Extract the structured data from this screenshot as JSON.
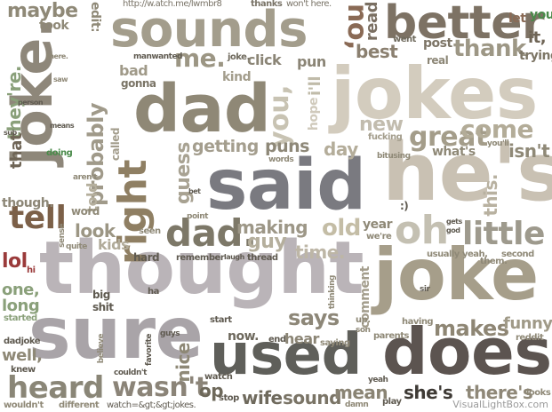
{
  "words": {
    "thought": "thought",
    "sure": "sure",
    "said": "said",
    "hes": "he's",
    "joke_big": "joke",
    "jokes": "jokes",
    "dad": "dad",
    "sounds": "sounds",
    "better": "better",
    "used": "used",
    "does": "does",
    "joke_v": "joke.",
    "right": "right",
    "dad_dot": "dad.",
    "oh": "oh",
    "little": "little",
    "heard": "heard",
    "wasnt": "wasn't",
    "great": "great",
    "come": "come",
    "tell": "tell",
    "me_dot": "me.",
    "you": "you,",
    "no": "no,",
    "thank": "thank",
    "maybe": "maybe",
    "theyre": "they're.",
    "probably": "probably",
    "guess": "guess",
    "getting": "getting",
    "puns": "puns",
    "day": "day",
    "new": "new",
    "best": "best",
    "post": "post",
    "trying": "trying",
    "it": "it,",
    "read": "read",
    "old": "old",
    "making": "making",
    "guy": "guy",
    "time": "time.",
    "look": "look",
    "kids": "kids",
    "says": "says",
    "makes": "makes",
    "funny": "funny",
    "wife": "wife",
    "sound": "sound",
    "mean": "mean",
    "shes": "she's",
    "theres": "there's",
    "now": "now.",
    "hear": "hear",
    "one": "one,",
    "long": "long",
    "well": "well,",
    "lol": "lol",
    "that": "that",
    "though": "though.",
    "told": "told",
    "nice": "nice",
    "op": "op",
    "isnt": "isn't",
    "whats": "what's",
    "this": "this.",
    "oh_face": ":)",
    "edit": "edit:",
    "took": "took",
    "url": "http://w.atch.me/lwmbr8",
    "thanks": "thanks",
    "wont": "won't here.",
    "bad": "bad",
    "gonna": "gonna",
    "kind": "kind",
    "click": "click",
    "pun": "pun",
    "joke_s": "joke.",
    "real": "real",
    "went": "went",
    "let": "let",
    "you_s": "you,",
    "year": "year",
    "were": "we're",
    "usually": "usually",
    "yeah": "yeah,",
    "second": "second",
    "them": "them.",
    "comment": "comment",
    "parents": "parents",
    "having": "having",
    "saying": "saying",
    "end": "end",
    "start": "start",
    "reddit": "reddit",
    "stop": "stop",
    "watch": "watch",
    "damn": "damn",
    "play": "play",
    "looks": "looks",
    "yeah2": "yeah",
    "dadjoke": "dadjoke",
    "knew": "knew",
    "wouldnt": "wouldn't",
    "different": "different",
    "watchgt": "watch=&gt;&gt;jokes.",
    "couldnt": "couldn't",
    "big": "big",
    "shit": "shit",
    "started": "started",
    "believe": "believe",
    "favorite": "favorite",
    "guys": "guys",
    "ha": "ha",
    "hard": "hard",
    "remember": "remember",
    "laugh": "laugh",
    "thread": "thread",
    "seen": "seen",
    "point": "point",
    "word": "word",
    "sense": "sense",
    "quite": "quite",
    "arent": "aren't",
    "doing": "doing",
    "means": "means",
    "person": "person",
    "saw": "saw",
    "sub": "sub",
    "there": "there.",
    "called": "called",
    "words": "words",
    "bet": "bet",
    "fucking": "fucking",
    "bitusing": "bitusing",
    "youll": "you'll",
    "gets": "gets",
    "god": "god",
    "sir": "sir",
    "thinking": "thinking",
    "up": "up.",
    "son": "son",
    "hope": "hope",
    "ill": "i'll",
    "hi": "hi",
    "manwanted": "manwanted",
    "joke3": "joke."
  },
  "watermark": "VisualLightBox.com"
}
